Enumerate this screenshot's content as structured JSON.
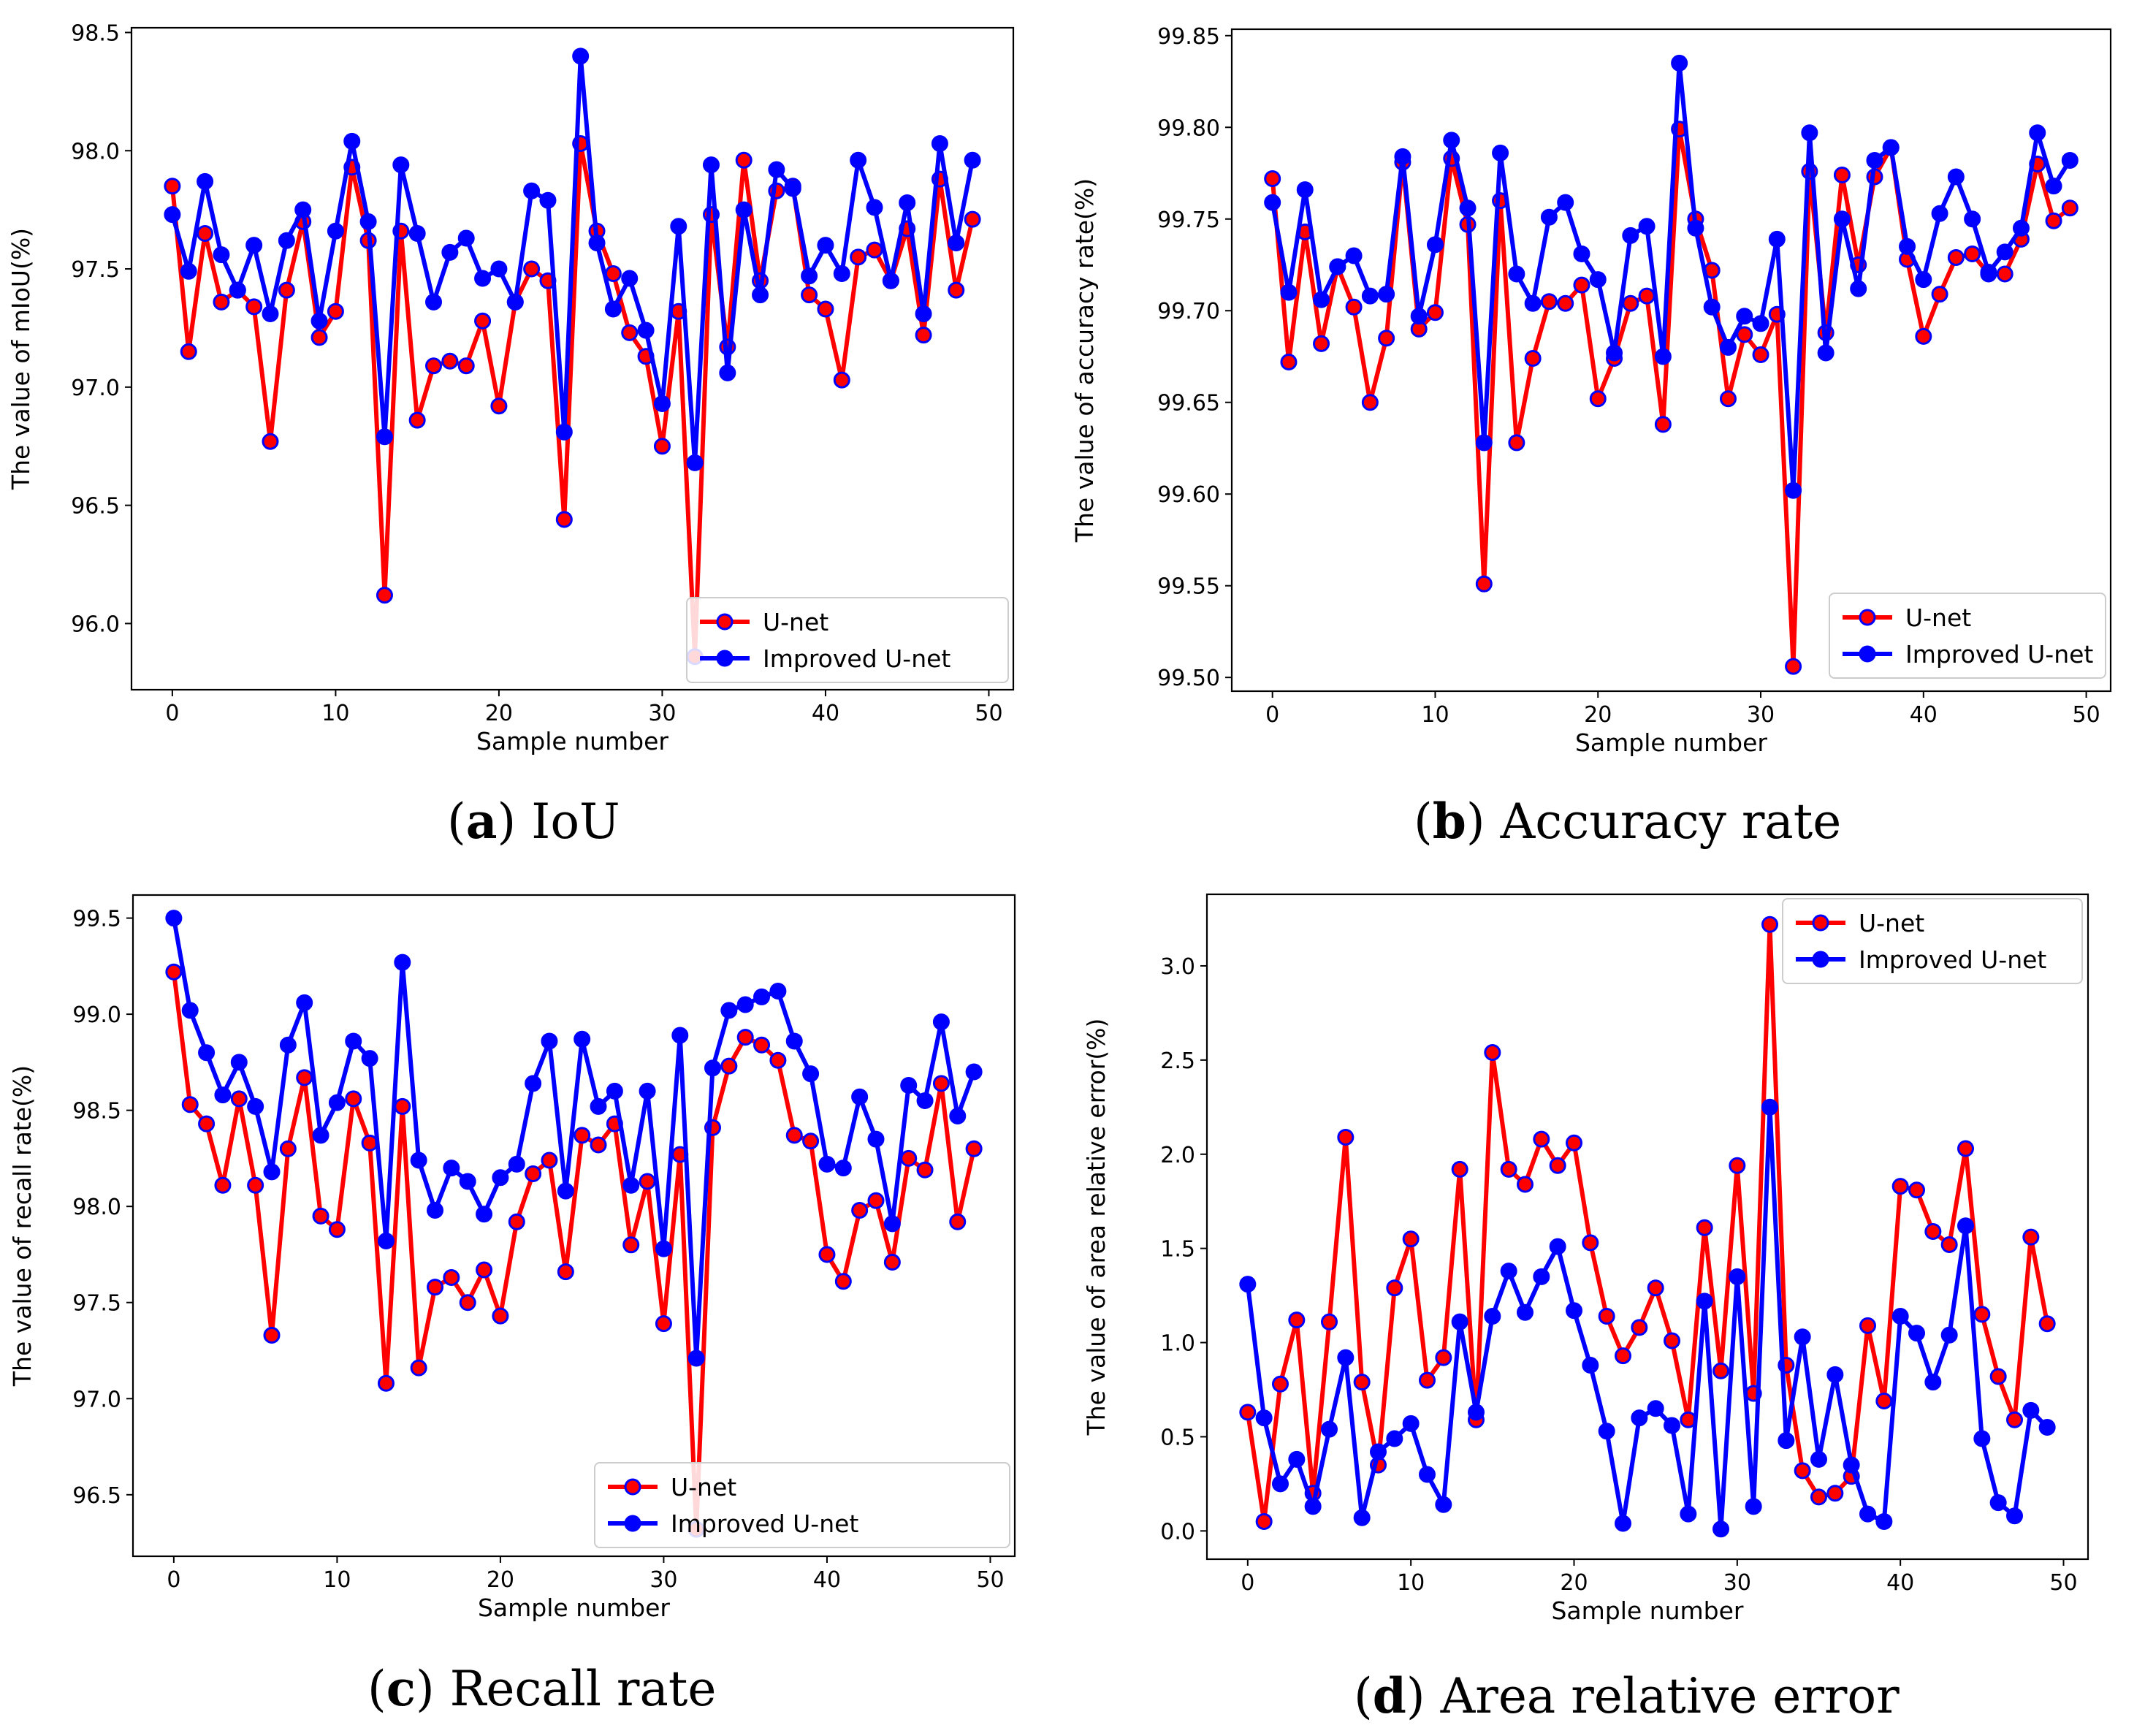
{
  "figure": {
    "colors": {
      "unet": "#ff0000",
      "improved": "#0000ff",
      "marker_edge_unet": "#0000ff"
    }
  },
  "panels": [
    {
      "id": "a",
      "caption_letter": "a",
      "caption_text": "IoU",
      "chart_data": {
        "type": "line",
        "title": "",
        "xlabel": "Sample number",
        "ylabel": "The value of mIoU(%)",
        "xlim": [
          -2.5,
          51.5
        ],
        "ylim": [
          95.72,
          98.52
        ],
        "xticks": [
          0,
          10,
          20,
          30,
          40,
          50
        ],
        "xtick_labels": [
          "0",
          "10",
          "20",
          "30",
          "40",
          "50"
        ],
        "yticks": [
          96.0,
          96.5,
          97.0,
          97.5,
          98.0,
          98.5
        ],
        "ytick_labels": [
          "96.0",
          "96.5",
          "97.0",
          "97.5",
          "98.0",
          "98.5"
        ],
        "legend_position": "lower-right",
        "x": [
          0,
          1,
          2,
          3,
          4,
          5,
          6,
          7,
          8,
          9,
          10,
          11,
          12,
          13,
          14,
          15,
          16,
          17,
          18,
          19,
          20,
          21,
          22,
          23,
          24,
          25,
          26,
          27,
          28,
          29,
          30,
          31,
          32,
          33,
          34,
          35,
          36,
          37,
          38,
          39,
          40,
          41,
          42,
          43,
          44,
          45,
          46,
          47,
          48,
          49
        ],
        "series": [
          {
            "name": "U-net",
            "values": [
              97.85,
              97.15,
              97.65,
              97.36,
              97.41,
              97.34,
              96.77,
              97.41,
              97.7,
              97.21,
              97.32,
              97.93,
              97.62,
              96.12,
              97.66,
              96.86,
              97.09,
              97.11,
              97.09,
              97.28,
              96.92,
              97.36,
              97.5,
              97.45,
              96.44,
              98.03,
              97.66,
              97.48,
              97.23,
              97.13,
              96.75,
              97.32,
              95.86,
              97.73,
              97.17,
              97.96,
              97.45,
              97.83,
              97.85,
              97.39,
              97.33,
              97.03,
              97.55,
              97.58,
              97.45,
              97.67,
              97.22,
              97.88,
              97.41,
              97.71
            ]
          },
          {
            "name": "Improved U-net",
            "values": [
              97.73,
              97.49,
              97.87,
              97.56,
              97.41,
              97.6,
              97.31,
              97.62,
              97.75,
              97.28,
              97.66,
              98.04,
              97.7,
              96.79,
              97.94,
              97.65,
              97.36,
              97.57,
              97.63,
              97.46,
              97.5,
              97.36,
              97.83,
              97.79,
              96.81,
              98.4,
              97.61,
              97.33,
              97.46,
              97.24,
              96.93,
              97.68,
              96.68,
              97.94,
              97.06,
              97.75,
              97.39,
              97.92,
              97.84,
              97.47,
              97.6,
              97.48,
              97.96,
              97.76,
              97.45,
              97.78,
              97.31,
              98.03,
              97.61,
              97.96
            ]
          }
        ]
      }
    },
    {
      "id": "b",
      "caption_letter": "b",
      "caption_text": "Accuracy rate",
      "chart_data": {
        "type": "line",
        "title": "",
        "xlabel": "Sample number",
        "ylabel": "The value of accuracy rate(%)",
        "xlim": [
          -2.5,
          51.5
        ],
        "ylim": [
          99.4925,
          99.8535
        ],
        "xticks": [
          0,
          10,
          20,
          30,
          40,
          50
        ],
        "xtick_labels": [
          "0",
          "10",
          "20",
          "30",
          "40",
          "50"
        ],
        "yticks": [
          99.5,
          99.55,
          99.6,
          99.65,
          99.7,
          99.75,
          99.8,
          99.85
        ],
        "ytick_labels": [
          "99.50",
          "99.55",
          "99.60",
          "99.65",
          "99.70",
          "99.75",
          "99.80",
          "99.85"
        ],
        "legend_position": "lower-right",
        "x": [
          0,
          1,
          2,
          3,
          4,
          5,
          6,
          7,
          8,
          9,
          10,
          11,
          12,
          13,
          14,
          15,
          16,
          17,
          18,
          19,
          20,
          21,
          22,
          23,
          24,
          25,
          26,
          27,
          28,
          29,
          30,
          31,
          32,
          33,
          34,
          35,
          36,
          37,
          38,
          39,
          40,
          41,
          42,
          43,
          44,
          45,
          46,
          47,
          48,
          49
        ],
        "series": [
          {
            "name": "U-net",
            "values": [
              99.772,
              99.672,
              99.743,
              99.682,
              99.724,
              99.702,
              99.65,
              99.685,
              99.781,
              99.69,
              99.699,
              99.783,
              99.747,
              99.551,
              99.76,
              99.628,
              99.674,
              99.705,
              99.704,
              99.714,
              99.652,
              99.674,
              99.704,
              99.708,
              99.638,
              99.799,
              99.75,
              99.722,
              99.652,
              99.687,
              99.676,
              99.698,
              99.506,
              99.776,
              99.688,
              99.774,
              99.725,
              99.773,
              99.789,
              99.728,
              99.686,
              99.709,
              99.729,
              99.731,
              99.72,
              99.72,
              99.739,
              99.78,
              99.749,
              99.756
            ]
          },
          {
            "name": "Improved U-net",
            "values": [
              99.759,
              99.71,
              99.766,
              99.706,
              99.724,
              99.73,
              99.708,
              99.709,
              99.784,
              99.697,
              99.736,
              99.793,
              99.756,
              99.628,
              99.786,
              99.72,
              99.704,
              99.751,
              99.759,
              99.731,
              99.717,
              99.677,
              99.741,
              99.746,
              99.675,
              99.835,
              99.745,
              99.702,
              99.68,
              99.697,
              99.693,
              99.739,
              99.602,
              99.797,
              99.677,
              99.75,
              99.712,
              99.782,
              99.789,
              99.735,
              99.717,
              99.753,
              99.773,
              99.75,
              99.721,
              99.732,
              99.745,
              99.797,
              99.768,
              99.782
            ]
          }
        ]
      }
    },
    {
      "id": "c",
      "caption_letter": "c",
      "caption_text": "Recall rate",
      "chart_data": {
        "type": "line",
        "title": "",
        "xlabel": "Sample number",
        "ylabel": "The value of recall rate(%)",
        "xlim": [
          -2.5,
          51.5
        ],
        "ylim": [
          96.18,
          99.62
        ],
        "xticks": [
          0,
          10,
          20,
          30,
          40,
          50
        ],
        "xtick_labels": [
          "0",
          "10",
          "20",
          "30",
          "40",
          "50"
        ],
        "yticks": [
          96.5,
          97.0,
          97.5,
          98.0,
          98.5,
          99.0,
          99.5
        ],
        "ytick_labels": [
          "96.5",
          "97.0",
          "97.5",
          "98.0",
          "98.5",
          "99.0",
          "99.5"
        ],
        "legend_position": "lower-right",
        "x": [
          0,
          1,
          2,
          3,
          4,
          5,
          6,
          7,
          8,
          9,
          10,
          11,
          12,
          13,
          14,
          15,
          16,
          17,
          18,
          19,
          20,
          21,
          22,
          23,
          24,
          25,
          26,
          27,
          28,
          29,
          30,
          31,
          32,
          33,
          34,
          35,
          36,
          37,
          38,
          39,
          40,
          41,
          42,
          43,
          44,
          45,
          46,
          47,
          48,
          49
        ],
        "series": [
          {
            "name": "U-net",
            "values": [
              99.22,
              98.53,
              98.43,
              98.11,
              98.56,
              98.11,
              97.33,
              98.3,
              98.67,
              97.95,
              97.88,
              98.56,
              98.33,
              97.08,
              98.52,
              97.16,
              97.58,
              97.63,
              97.5,
              97.67,
              97.43,
              97.92,
              98.17,
              98.24,
              97.66,
              98.37,
              98.32,
              98.43,
              97.8,
              98.13,
              97.39,
              98.27,
              96.32,
              98.41,
              98.73,
              98.88,
              98.84,
              98.76,
              98.37,
              98.34,
              97.75,
              97.61,
              97.98,
              98.03,
              97.71,
              98.25,
              98.19,
              98.64,
              97.92,
              98.3
            ]
          },
          {
            "name": "Improved U-net",
            "values": [
              99.5,
              99.02,
              98.8,
              98.58,
              98.75,
              98.52,
              98.18,
              98.84,
              99.06,
              98.37,
              98.54,
              98.86,
              98.77,
              97.82,
              99.27,
              98.24,
              97.98,
              98.2,
              98.13,
              97.96,
              98.15,
              98.22,
              98.64,
              98.86,
              98.08,
              98.87,
              98.52,
              98.6,
              98.11,
              98.6,
              97.78,
              98.89,
              97.21,
              98.72,
              99.02,
              99.05,
              99.09,
              99.12,
              98.86,
              98.69,
              98.22,
              98.2,
              98.57,
              98.35,
              97.91,
              98.63,
              98.55,
              98.96,
              98.47,
              98.7
            ]
          }
        ]
      }
    },
    {
      "id": "d",
      "caption_letter": "d",
      "caption_text": "Area relative error",
      "chart_data": {
        "type": "line",
        "title": "",
        "xlabel": "Sample number",
        "ylabel": "The value of area relative error(%)",
        "xlim": [
          -2.5,
          51.5
        ],
        "ylim": [
          -0.15,
          3.38
        ],
        "xticks": [
          0,
          10,
          20,
          30,
          40,
          50
        ],
        "xtick_labels": [
          "0",
          "10",
          "20",
          "30",
          "40",
          "50"
        ],
        "yticks": [
          0.0,
          0.5,
          1.0,
          1.5,
          2.0,
          2.5,
          3.0
        ],
        "ytick_labels": [
          "0.0",
          "0.5",
          "1.0",
          "1.5",
          "2.0",
          "2.5",
          "3.0"
        ],
        "legend_position": "upper-right",
        "x": [
          0,
          1,
          2,
          3,
          4,
          5,
          6,
          7,
          8,
          9,
          10,
          11,
          12,
          13,
          14,
          15,
          16,
          17,
          18,
          19,
          20,
          21,
          22,
          23,
          24,
          25,
          26,
          27,
          28,
          29,
          30,
          31,
          32,
          33,
          34,
          35,
          36,
          37,
          38,
          39,
          40,
          41,
          42,
          43,
          44,
          45,
          46,
          47,
          48,
          49
        ],
        "series": [
          {
            "name": "U-net",
            "values": [
              0.63,
              0.05,
              0.78,
              1.12,
              0.2,
              1.11,
              2.09,
              0.79,
              0.35,
              1.29,
              1.55,
              0.8,
              0.92,
              1.92,
              0.59,
              2.54,
              1.92,
              1.84,
              2.08,
              1.94,
              2.06,
              1.53,
              1.14,
              0.93,
              1.08,
              1.29,
              1.01,
              0.59,
              1.61,
              0.85,
              1.94,
              0.73,
              3.22,
              0.88,
              0.32,
              0.18,
              0.2,
              0.29,
              1.09,
              0.69,
              1.83,
              1.81,
              1.59,
              1.52,
              2.03,
              1.15,
              0.82,
              0.59,
              1.56,
              1.1
            ]
          },
          {
            "name": "Improved U-net",
            "values": [
              1.31,
              0.6,
              0.25,
              0.38,
              0.13,
              0.54,
              0.92,
              0.07,
              0.42,
              0.49,
              0.57,
              0.3,
              0.14,
              1.11,
              0.63,
              1.14,
              1.38,
              1.16,
              1.35,
              1.51,
              1.17,
              0.88,
              0.53,
              0.04,
              0.6,
              0.65,
              0.56,
              0.09,
              1.22,
              0.01,
              1.35,
              0.13,
              2.25,
              0.48,
              1.03,
              0.38,
              0.83,
              0.35,
              0.09,
              0.05,
              1.14,
              1.05,
              0.79,
              1.04,
              1.62,
              0.49,
              0.15,
              0.08,
              0.64,
              0.55
            ]
          }
        ]
      }
    }
  ]
}
